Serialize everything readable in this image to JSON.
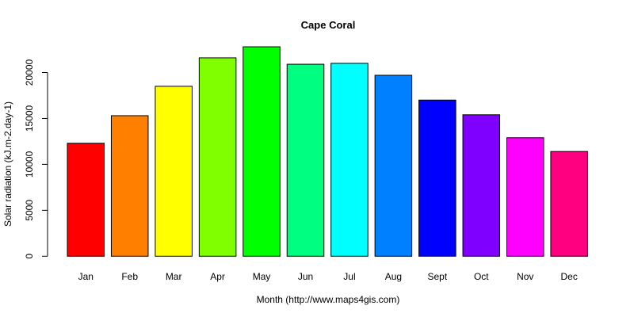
{
  "chart_data": {
    "type": "bar",
    "title": "Cape Coral",
    "xlabel": "Month (http://www.maps4gis.com)",
    "ylabel": "Solar radiation (kJ.m-2.day-1)",
    "categories": [
      "Jan",
      "Feb",
      "Mar",
      "Apr",
      "May",
      "Jun",
      "Jul",
      "Aug",
      "Sept",
      "Oct",
      "Nov",
      "Dec"
    ],
    "values": [
      12300,
      15300,
      18500,
      21600,
      22800,
      20900,
      21000,
      19700,
      17000,
      15400,
      12900,
      11400
    ],
    "colors": [
      "#FF0000",
      "#FF8000",
      "#FFFF00",
      "#80FF00",
      "#00FF00",
      "#00FF80",
      "#00FFFF",
      "#0080FF",
      "#0000FF",
      "#8000FF",
      "#FF00FF",
      "#FF0080"
    ],
    "yticks": [
      0,
      5000,
      10000,
      15000,
      20000
    ],
    "ylim": [
      0,
      20000
    ],
    "grid": false,
    "legend": null
  }
}
